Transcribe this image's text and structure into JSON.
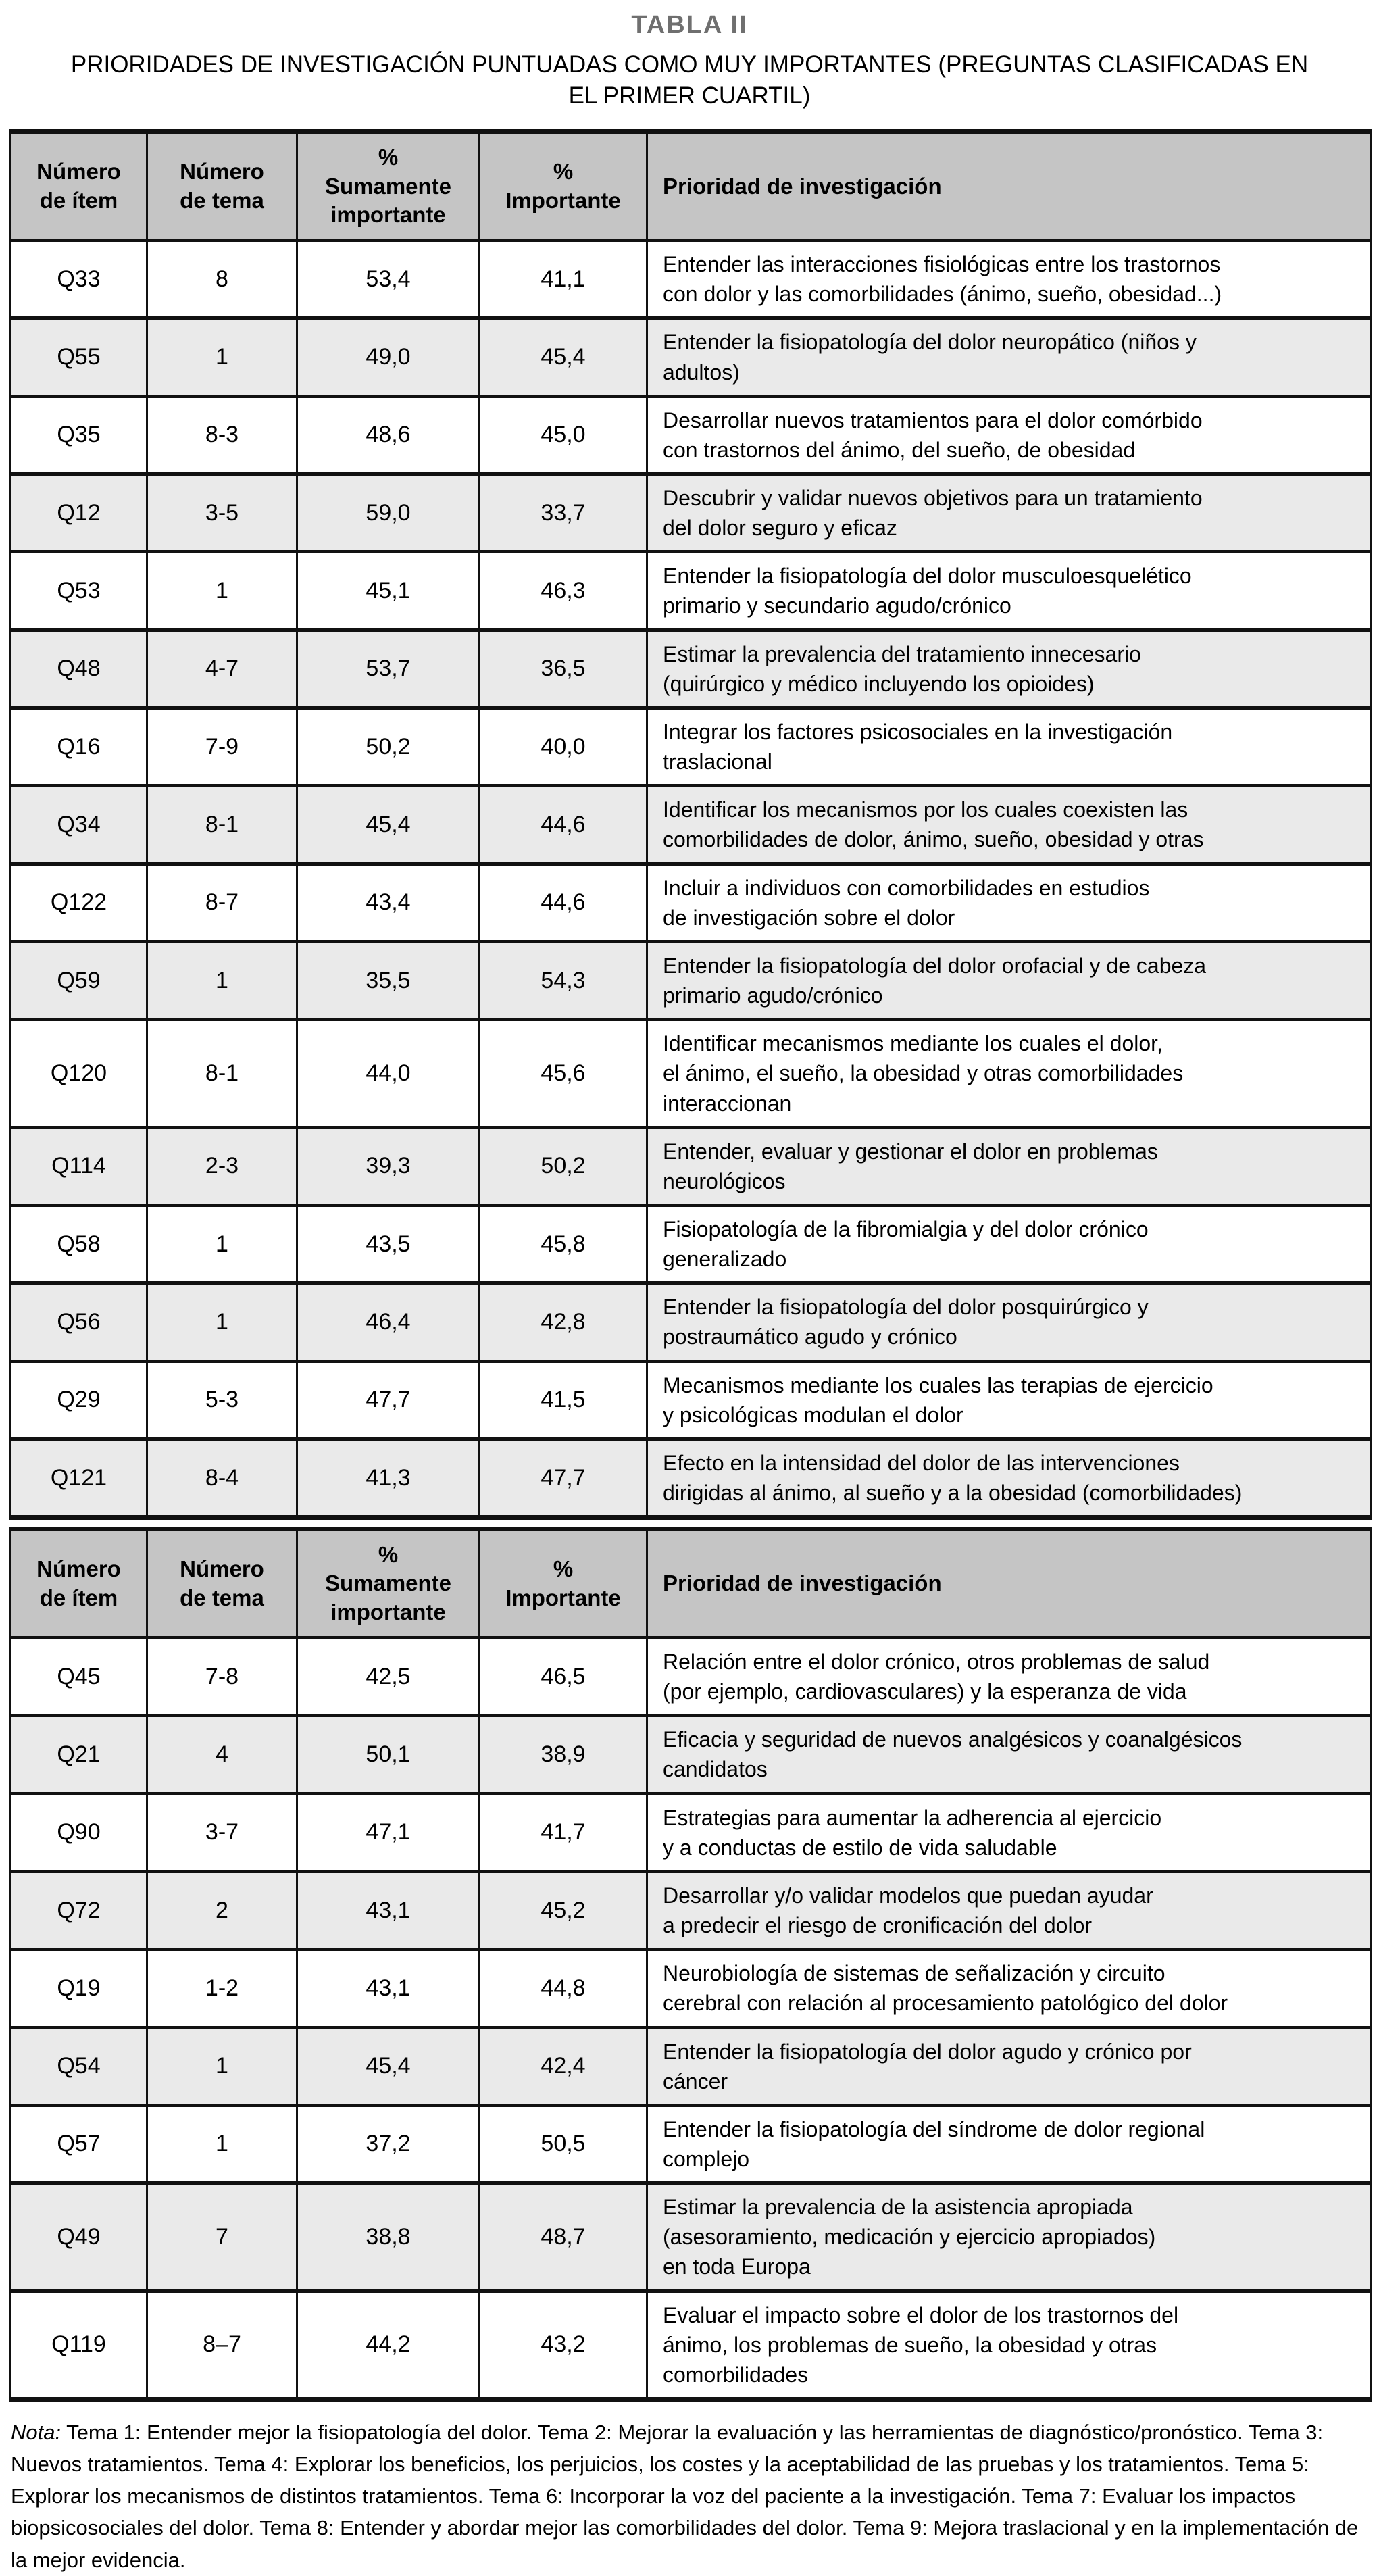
{
  "page": {
    "title": "TABLA II",
    "subtitle": "PRIORIDADES DE INVESTIGACIÓN PUNTUADAS COMO MUY IMPORTANTES (PREGUNTAS CLASIFICADAS EN\nEL PRIMER CUARTIL)"
  },
  "colors": {
    "header_bg": "#c5c5c5",
    "row_alt_bg": "#eaeaea",
    "title_color": "#6f6f6f",
    "border": "#111111"
  },
  "table": {
    "headers": [
      "Número\nde ítem",
      "Número\nde tema",
      "%\nSumamente\nimportante",
      "%\nImportante",
      "Prioridad de investigación"
    ],
    "sections": [
      {
        "rows": [
          [
            "Q33",
            "8",
            "53,4",
            "41,1",
            "Entender las interacciones fisiológicas entre los trastornos\ncon dolor y las comorbilidades (ánimo, sueño, obesidad...)"
          ],
          [
            "Q55",
            "1",
            "49,0",
            "45,4",
            "Entender la fisiopatología del dolor neuropático (niños y\nadultos)"
          ],
          [
            "Q35",
            "8-3",
            "48,6",
            "45,0",
            "Desarrollar nuevos tratamientos para el dolor comórbido\ncon trastornos del ánimo, del sueño, de obesidad"
          ],
          [
            "Q12",
            "3-5",
            "59,0",
            "33,7",
            "Descubrir y validar nuevos objetivos para un tratamiento\ndel dolor seguro y eficaz"
          ],
          [
            "Q53",
            "1",
            "45,1",
            "46,3",
            "Entender la fisiopatología del dolor musculoesquelético\nprimario y secundario agudo/crónico"
          ],
          [
            "Q48",
            "4-7",
            "53,7",
            "36,5",
            "Estimar la prevalencia del tratamiento innecesario\n(quirúrgico y médico incluyendo los opioides)"
          ],
          [
            "Q16",
            "7-9",
            "50,2",
            "40,0",
            "Integrar los factores psicosociales en la investigación\ntraslacional"
          ],
          [
            "Q34",
            "8-1",
            "45,4",
            "44,6",
            "Identificar los mecanismos por los cuales coexisten las\ncomorbilidades de dolor, ánimo, sueño, obesidad y otras"
          ],
          [
            "Q122",
            "8-7",
            "43,4",
            "44,6",
            "Incluir a individuos con comorbilidades en estudios\nde investigación sobre el dolor"
          ],
          [
            "Q59",
            "1",
            "35,5",
            "54,3",
            "Entender la fisiopatología del dolor orofacial y de cabeza\nprimario agudo/crónico"
          ],
          [
            "Q120",
            "8-1",
            "44,0",
            "45,6",
            "Identificar mecanismos mediante los cuales el dolor,\nel ánimo, el sueño, la obesidad y otras comorbilidades\ninteraccionan"
          ],
          [
            "Q114",
            "2-3",
            "39,3",
            "50,2",
            "Entender, evaluar y gestionar el dolor en problemas\nneurológicos"
          ],
          [
            "Q58",
            "1",
            "43,5",
            "45,8",
            "Fisiopatología de la fibromialgia y del dolor crónico\ngeneralizado"
          ],
          [
            "Q56",
            "1",
            "46,4",
            "42,8",
            "Entender la fisiopatología del dolor posquirúrgico y\npostraumático agudo y crónico"
          ],
          [
            "Q29",
            "5-3",
            "47,7",
            "41,5",
            "Mecanismos mediante los cuales las terapias de ejercicio\ny psicológicas modulan el dolor"
          ],
          [
            "Q121",
            "8-4",
            "41,3",
            "47,7",
            "Efecto en la intensidad del dolor de las intervenciones\ndirigidas al ánimo, al sueño y a la obesidad (comorbilidades)"
          ]
        ]
      },
      {
        "rows": [
          [
            "Q45",
            "7-8",
            "42,5",
            "46,5",
            "Relación entre el dolor crónico, otros problemas de salud\n(por ejemplo, cardiovasculares) y la esperanza de vida"
          ],
          [
            "Q21",
            "4",
            "50,1",
            "38,9",
            "Eficacia y seguridad de nuevos analgésicos y coanalgésicos\ncandidatos"
          ],
          [
            "Q90",
            "3-7",
            "47,1",
            "41,7",
            "Estrategias para aumentar la adherencia al ejercicio\ny a conductas de estilo de vida saludable"
          ],
          [
            "Q72",
            "2",
            "43,1",
            "45,2",
            "Desarrollar y/o validar modelos que puedan ayudar\na predecir el riesgo de cronificación del dolor"
          ],
          [
            "Q19",
            "1-2",
            "43,1",
            "44,8",
            "Neurobiología de sistemas de señalización y circuito\ncerebral con relación al procesamiento patológico del dolor"
          ],
          [
            "Q54",
            "1",
            "45,4",
            "42,4",
            "Entender la fisiopatología del dolor agudo y crónico por\ncáncer"
          ],
          [
            "Q57",
            "1",
            "37,2",
            "50,5",
            "Entender la fisiopatología del síndrome de dolor regional\ncomplejo"
          ],
          [
            "Q49",
            "7",
            "38,8",
            "48,7",
            "Estimar la prevalencia de la asistencia apropiada\n(asesoramiento, medicación y ejercicio apropiados)\nen toda Europa"
          ],
          [
            "Q119",
            "8–7",
            "44,2",
            "43,2",
            "Evaluar el impacto sobre el dolor de los trastornos del\nánimo, los problemas de sueño, la obesidad y otras\ncomorbilidades"
          ]
        ]
      }
    ]
  },
  "note": {
    "label": "Nota:",
    "text": "Tema 1: Entender mejor la fisiopatología del dolor. Tema 2: Mejorar la evaluación y las herramientas de diagnóstico/pronóstico. Tema 3: Nuevos tratamientos. Tema 4: Explorar los beneficios, los perjuicios, los costes y la aceptabilidad de las pruebas y los tratamientos. Tema 5: Explorar los mecanismos de distintos tratamientos. Tema 6: Incorporar la voz del paciente a la investigación. Tema 7: Evaluar los impactos biopsicosociales del dolor. Tema 8: Entender y abordar mejor las comorbilidades del dolor. Tema 9: Mejora traslacional y en la implementación de la mejor evidencia."
  }
}
